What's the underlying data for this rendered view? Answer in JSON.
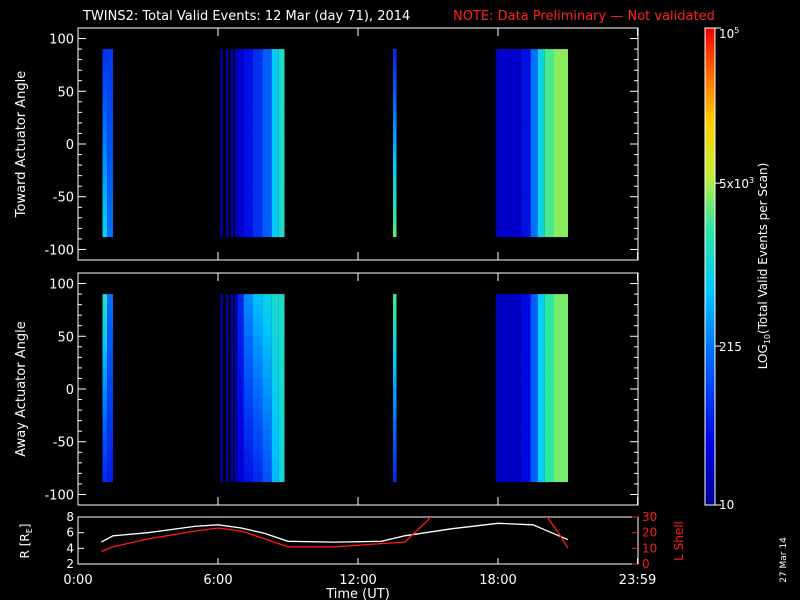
{
  "title": {
    "main": "TWINS2: Total Valid Events: 12 Mar (day  71), 2014",
    "note": "NOTE: Data Preliminary — Not validated"
  },
  "colors": {
    "background": "#000000",
    "axes": "#ffffff",
    "note": "#ff2020",
    "orbit_r": "#ffffff",
    "orbit_l": "#ff1a1a"
  },
  "chart_data": [
    {
      "type": "heatmap",
      "name": "toward",
      "ylabel": "Toward Actuator Angle",
      "ylim": [
        -110,
        110
      ],
      "yticks": [
        100,
        50,
        0,
        -50,
        -100
      ],
      "xlim": [
        0,
        24
      ],
      "angle_range": [
        -88,
        90
      ],
      "note_scale": "value color uses log10 of events per scan",
      "blocks": [
        {
          "t0": 1.05,
          "t1": 1.25,
          "bottom": 800,
          "top": 70
        },
        {
          "t0": 1.25,
          "t1": 1.5,
          "bottom": 200,
          "top": 80
        },
        {
          "t0": 6.1,
          "t1": 6.2,
          "bottom": 18,
          "top": 18
        },
        {
          "t0": 6.35,
          "t1": 6.45,
          "bottom": 18,
          "top": 18
        },
        {
          "t0": 6.55,
          "t1": 6.65,
          "bottom": 18,
          "top": 18
        },
        {
          "t0": 6.72,
          "t1": 6.85,
          "bottom": 20,
          "top": 20
        },
        {
          "t0": 6.85,
          "t1": 7.1,
          "bottom": 25,
          "top": 25
        },
        {
          "t0": 7.1,
          "t1": 7.5,
          "bottom": 40,
          "top": 40
        },
        {
          "t0": 7.5,
          "t1": 7.9,
          "bottom": 70,
          "top": 70
        },
        {
          "t0": 7.9,
          "t1": 8.3,
          "bottom": 150,
          "top": 150
        },
        {
          "t0": 8.3,
          "t1": 8.6,
          "bottom": 700,
          "top": 700
        },
        {
          "t0": 8.6,
          "t1": 8.85,
          "bottom": 1300,
          "top": 1300
        },
        {
          "t0": 13.5,
          "t1": 13.65,
          "bottom": 3000,
          "top": 60
        },
        {
          "t0": 17.9,
          "t1": 18.0,
          "bottom": 15,
          "top": 15
        },
        {
          "t0": 18.0,
          "t1": 19.0,
          "bottom": 22,
          "top": 22
        },
        {
          "t0": 19.0,
          "t1": 19.4,
          "bottom": 40,
          "top": 40
        },
        {
          "t0": 19.4,
          "t1": 19.7,
          "bottom": 200,
          "top": 200
        },
        {
          "t0": 19.7,
          "t1": 20.0,
          "bottom": 900,
          "top": 900
        },
        {
          "t0": 20.0,
          "t1": 20.4,
          "bottom": 2500,
          "top": 2500
        },
        {
          "t0": 20.4,
          "t1": 21.0,
          "bottom": 4000,
          "top": 4000
        }
      ]
    },
    {
      "type": "heatmap",
      "name": "away",
      "ylabel": "Away Actuator Angle",
      "ylim": [
        -110,
        110
      ],
      "yticks": [
        100,
        50,
        0,
        -50,
        -100
      ],
      "xlim": [
        0,
        24
      ],
      "angle_range": [
        -88,
        90
      ],
      "blocks": [
        {
          "t0": 1.05,
          "t1": 1.25,
          "bottom": 60,
          "top": 1500
        },
        {
          "t0": 1.25,
          "t1": 1.5,
          "bottom": 50,
          "top": 200
        },
        {
          "t0": 6.1,
          "t1": 6.2,
          "bottom": 18,
          "top": 18
        },
        {
          "t0": 6.35,
          "t1": 6.45,
          "bottom": 18,
          "top": 18
        },
        {
          "t0": 6.55,
          "t1": 6.65,
          "bottom": 18,
          "top": 18
        },
        {
          "t0": 6.72,
          "t1": 6.85,
          "bottom": 20,
          "top": 20
        },
        {
          "t0": 6.85,
          "t1": 7.1,
          "bottom": 25,
          "top": 60
        },
        {
          "t0": 7.1,
          "t1": 7.5,
          "bottom": 40,
          "top": 300
        },
        {
          "t0": 7.5,
          "t1": 7.9,
          "bottom": 60,
          "top": 600
        },
        {
          "t0": 7.9,
          "t1": 8.3,
          "bottom": 120,
          "top": 900
        },
        {
          "t0": 8.3,
          "t1": 8.6,
          "bottom": 500,
          "top": 1200
        },
        {
          "t0": 8.6,
          "t1": 8.85,
          "bottom": 1000,
          "top": 1300
        },
        {
          "t0": 13.5,
          "t1": 13.65,
          "bottom": 60,
          "top": 2500
        },
        {
          "t0": 17.9,
          "t1": 18.0,
          "bottom": 15,
          "top": 15
        },
        {
          "t0": 18.0,
          "t1": 19.0,
          "bottom": 20,
          "top": 20
        },
        {
          "t0": 19.0,
          "t1": 19.4,
          "bottom": 35,
          "top": 35
        },
        {
          "t0": 19.4,
          "t1": 19.7,
          "bottom": 150,
          "top": 150
        },
        {
          "t0": 19.7,
          "t1": 20.0,
          "bottom": 700,
          "top": 700
        },
        {
          "t0": 20.0,
          "t1": 20.4,
          "bottom": 2000,
          "top": 2000
        },
        {
          "t0": 20.4,
          "t1": 21.0,
          "bottom": 3500,
          "top": 3500
        }
      ]
    },
    {
      "type": "line",
      "name": "orbit",
      "xlabel": "Time (UT)",
      "xlim": [
        0,
        24
      ],
      "xticks": [
        {
          "t": 0,
          "label": "0:00"
        },
        {
          "t": 6,
          "label": "6:00"
        },
        {
          "t": 12,
          "label": "12:00"
        },
        {
          "t": 18,
          "label": "18:00"
        },
        {
          "t": 23.98,
          "label": "23:59"
        }
      ],
      "left_axis": {
        "ylabel": "R [R",
        "ylabel_sub": "E",
        "ylabel_end": "]",
        "ylim": [
          2,
          8
        ],
        "yticks": [
          2,
          4,
          6,
          8
        ]
      },
      "right_axis": {
        "ylabel": "L Shell",
        "ylim": [
          0,
          30
        ],
        "yticks": [
          0,
          10,
          20,
          30
        ]
      },
      "series": [
        {
          "axis": "left",
          "x": [
            1.0,
            1.5,
            3.0,
            5.0,
            6.0,
            7.0,
            8.0,
            9.0,
            11.0,
            13.0,
            14.0,
            16.0,
            18.0,
            19.5,
            21.0
          ],
          "y": [
            4.8,
            5.6,
            6.0,
            6.8,
            7.0,
            6.6,
            5.9,
            4.9,
            4.8,
            4.9,
            5.6,
            6.5,
            7.2,
            7.0,
            5.1
          ]
        },
        {
          "axis": "right",
          "x": [
            1.0,
            1.5,
            3.0,
            5.0,
            6.0,
            7.0,
            8.0,
            9.0,
            11.0,
            13.0,
            14.0,
            15.0,
            15.2
          ],
          "y": [
            8,
            11,
            16,
            21,
            23,
            21,
            16,
            11,
            11,
            13,
            14,
            28,
            32
          ]
        },
        {
          "axis": "right",
          "x": [
            20.0,
            20.5,
            21.0
          ],
          "y": [
            32,
            22,
            10
          ]
        }
      ]
    }
  ],
  "colorbar": {
    "min": 10,
    "max": 100000,
    "tick_labels": [
      {
        "value": 10,
        "label": "10",
        "exp": ""
      },
      {
        "value": 215,
        "label": "215",
        "exp": ""
      },
      {
        "value": 5000,
        "label": "5x10",
        "exp": "3"
      },
      {
        "value": 100000,
        "label": "10",
        "exp": "5"
      }
    ],
    "label_pre": "LOG",
    "label_sub": "10",
    "label_post": "(Total Valid Events per Scan)"
  },
  "date_stamp": "27 Mar 14"
}
